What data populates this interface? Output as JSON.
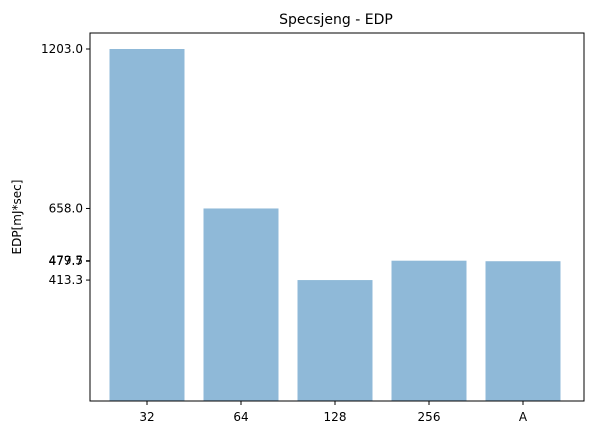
{
  "chart_data": {
    "type": "bar",
    "title": "Specsjeng - EDP",
    "xlabel": "",
    "ylabel": "EDP[mJ*sec]",
    "categories": [
      "32",
      "64",
      "128",
      "256",
      "A"
    ],
    "values": [
      1203.0,
      658.0,
      413.3,
      479.5,
      477.7
    ],
    "ytick_labels": [
      "1203.0",
      "658.0",
      "479.5",
      "477.7",
      "413.3"
    ],
    "ylim": [
      0,
      1203.0
    ],
    "bar_color": "#8fb9d8",
    "grid": false,
    "legend": "none"
  }
}
